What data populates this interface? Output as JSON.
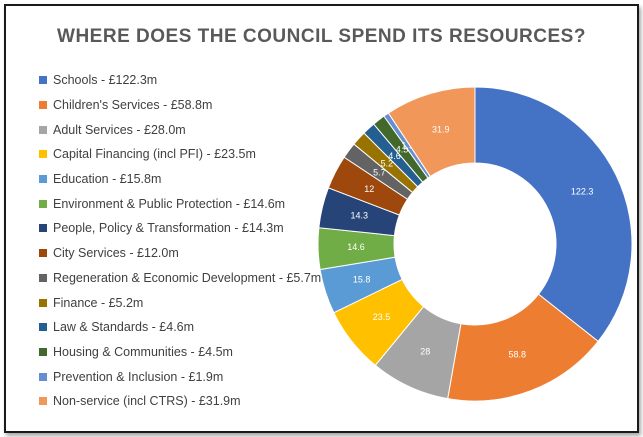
{
  "chart_data": {
    "type": "pie",
    "title": "WHERE DOES THE COUNCIL SPEND ITS RESOURCES?",
    "legend_position": "left",
    "donut": true,
    "slices": [
      {
        "legend": "Schools - £122.3m",
        "value": 122.3,
        "data_label": "122.3",
        "color": "#4472c4"
      },
      {
        "legend": "Children's Services - £58.8m",
        "value": 58.8,
        "data_label": "58.8",
        "color": "#ed7d31"
      },
      {
        "legend": "Adult Services - £28.0m",
        "value": 28.0,
        "data_label": "28",
        "color": "#a5a5a5"
      },
      {
        "legend": "Capital Financing (incl PFI) - £23.5m",
        "value": 23.5,
        "data_label": "23.5",
        "color": "#ffc000"
      },
      {
        "legend": "Education - £15.8m",
        "value": 15.8,
        "data_label": "15.8",
        "color": "#5b9bd5"
      },
      {
        "legend": "Environment & Public Protection - £14.6m",
        "value": 14.6,
        "data_label": "14.6",
        "color": "#70ad47"
      },
      {
        "legend": "People, Policy & Transformation - £14.3m",
        "value": 14.3,
        "data_label": "14.3",
        "color": "#264478"
      },
      {
        "legend": "City Services - £12.0m",
        "value": 12.0,
        "data_label": "12",
        "color": "#9e480e"
      },
      {
        "legend": "Regeneration & Economic Development - £5.7m",
        "value": 5.7,
        "data_label": "5.7",
        "color": "#636363"
      },
      {
        "legend": "Finance - £5.2m",
        "value": 5.2,
        "data_label": "5.2",
        "color": "#997300"
      },
      {
        "legend": "Law & Standards - £4.6m",
        "value": 4.6,
        "data_label": "4.6",
        "color": "#255e91"
      },
      {
        "legend": "Housing & Communities - £4.5m",
        "value": 4.5,
        "data_label": "4.5",
        "color": "#43682b"
      },
      {
        "legend": "Prevention & Inclusion - £1.9m",
        "value": 1.9,
        "data_label": "1.9",
        "color": "#698ed0"
      },
      {
        "legend": "Non-service (incl CTRS) - £31.9m",
        "value": 31.9,
        "data_label": "31.9",
        "color": "#f1975a"
      }
    ]
  }
}
